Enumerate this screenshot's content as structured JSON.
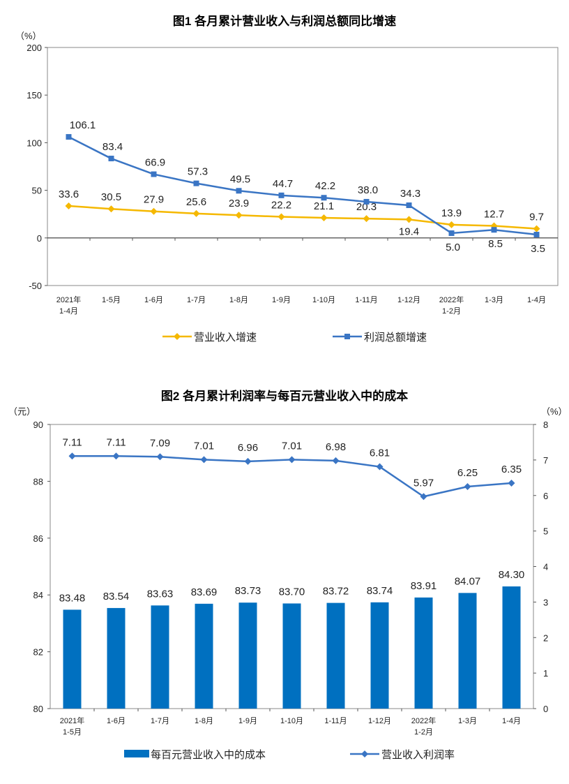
{
  "chart_data": [
    {
      "type": "line",
      "title": "图1  各月累计营业收入与利润总额同比增速",
      "ylabel": "（%）",
      "ylim": [
        -50,
        200
      ],
      "yticks": [
        -50,
        0,
        50,
        100,
        150,
        200
      ],
      "categories": [
        [
          "2021年",
          "1-4月"
        ],
        [
          "1-5月"
        ],
        [
          "1-6月"
        ],
        [
          "1-7月"
        ],
        [
          "1-8月"
        ],
        [
          "1-9月"
        ],
        [
          "1-10月"
        ],
        [
          "1-11月"
        ],
        [
          "1-12月"
        ],
        [
          "2022年",
          "1-2月"
        ],
        [
          "1-3月"
        ],
        [
          "1-4月"
        ]
      ],
      "grid": false,
      "legend_position": "bottom",
      "series": [
        {
          "name": "营业收入增速",
          "color": "#F5B800",
          "marker": "diamond",
          "values": [
            33.6,
            30.5,
            27.9,
            25.6,
            23.9,
            22.2,
            21.1,
            20.3,
            19.4,
            13.9,
            12.7,
            9.7
          ]
        },
        {
          "name": "利润总额增速",
          "color": "#3A75C4",
          "marker": "square",
          "values": [
            106.1,
            83.4,
            66.9,
            57.3,
            49.5,
            44.7,
            42.2,
            38.0,
            34.3,
            5.0,
            8.5,
            3.5
          ]
        }
      ]
    },
    {
      "type": "bar+line",
      "title": "图2  各月累计利润率与每百元营业收入中的成本",
      "ylabel_left": "（元）",
      "ylabel_right": "（%）",
      "ylim_left": [
        80,
        90
      ],
      "yticks_left": [
        80,
        82,
        84,
        86,
        88,
        90
      ],
      "ylim_right": [
        0,
        8
      ],
      "yticks_right": [
        0,
        1,
        2,
        3,
        4,
        5,
        6,
        7,
        8
      ],
      "categories": [
        [
          "2021年",
          "1-5月"
        ],
        [
          "1-6月"
        ],
        [
          "1-7月"
        ],
        [
          "1-8月"
        ],
        [
          "1-9月"
        ],
        [
          "1-10月"
        ],
        [
          "1-11月"
        ],
        [
          "1-12月"
        ],
        [
          "2022年",
          "1-2月"
        ],
        [
          "1-3月"
        ],
        [
          "1-4月"
        ]
      ],
      "grid": false,
      "legend_position": "bottom",
      "series": [
        {
          "name": "每百元营业收入中的成本",
          "type": "bar",
          "axis": "left",
          "color": "#0070C0",
          "values": [
            83.48,
            83.54,
            83.63,
            83.69,
            83.73,
            83.7,
            83.72,
            83.74,
            83.91,
            84.07,
            84.3
          ]
        },
        {
          "name": "营业收入利润率",
          "type": "line",
          "axis": "right",
          "color": "#3A75C4",
          "marker": "diamond",
          "values": [
            7.11,
            7.11,
            7.09,
            7.01,
            6.96,
            7.01,
            6.98,
            6.81,
            5.97,
            6.25,
            6.35
          ]
        }
      ]
    }
  ]
}
